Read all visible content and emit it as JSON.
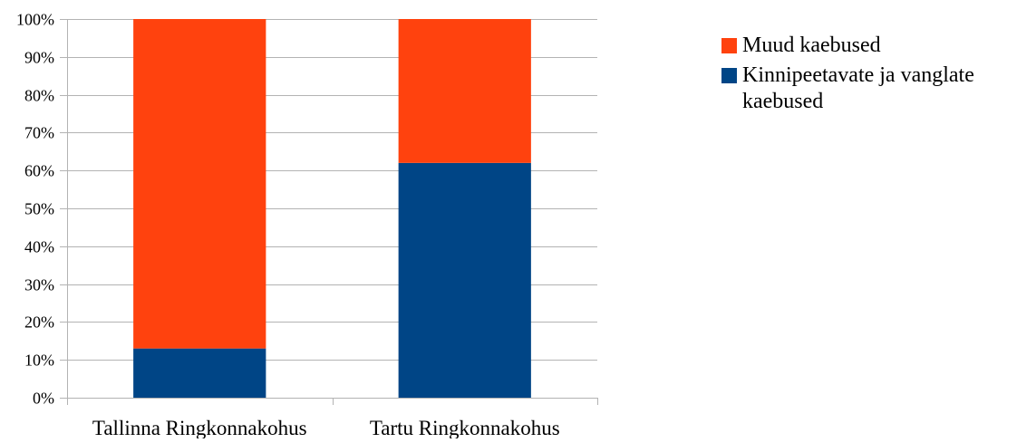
{
  "chart_data": {
    "type": "bar",
    "stacked": true,
    "categories": [
      "Tallinna Ringkonnakohus",
      "Tartu Ringkonnakohus"
    ],
    "series": [
      {
        "name": "Kinnipeetavate ja vanglate kaebused",
        "values": [
          13,
          62
        ],
        "color": "#004586"
      },
      {
        "name": "Muud kaebused",
        "values": [
          87,
          38
        ],
        "color": "#FF420E"
      }
    ],
    "ylim": [
      0,
      100
    ],
    "yticks": [
      "0%",
      "10%",
      "20%",
      "30%",
      "40%",
      "50%",
      "60%",
      "70%",
      "80%",
      "90%",
      "100%"
    ],
    "grid": true,
    "legend_position": "right",
    "legend_order": [
      "Muud kaebused",
      "Kinnipeetavate ja vanglate kaebused"
    ]
  },
  "colors": {
    "grid": "#b3b3b3",
    "axis": "#b3b3b3"
  }
}
